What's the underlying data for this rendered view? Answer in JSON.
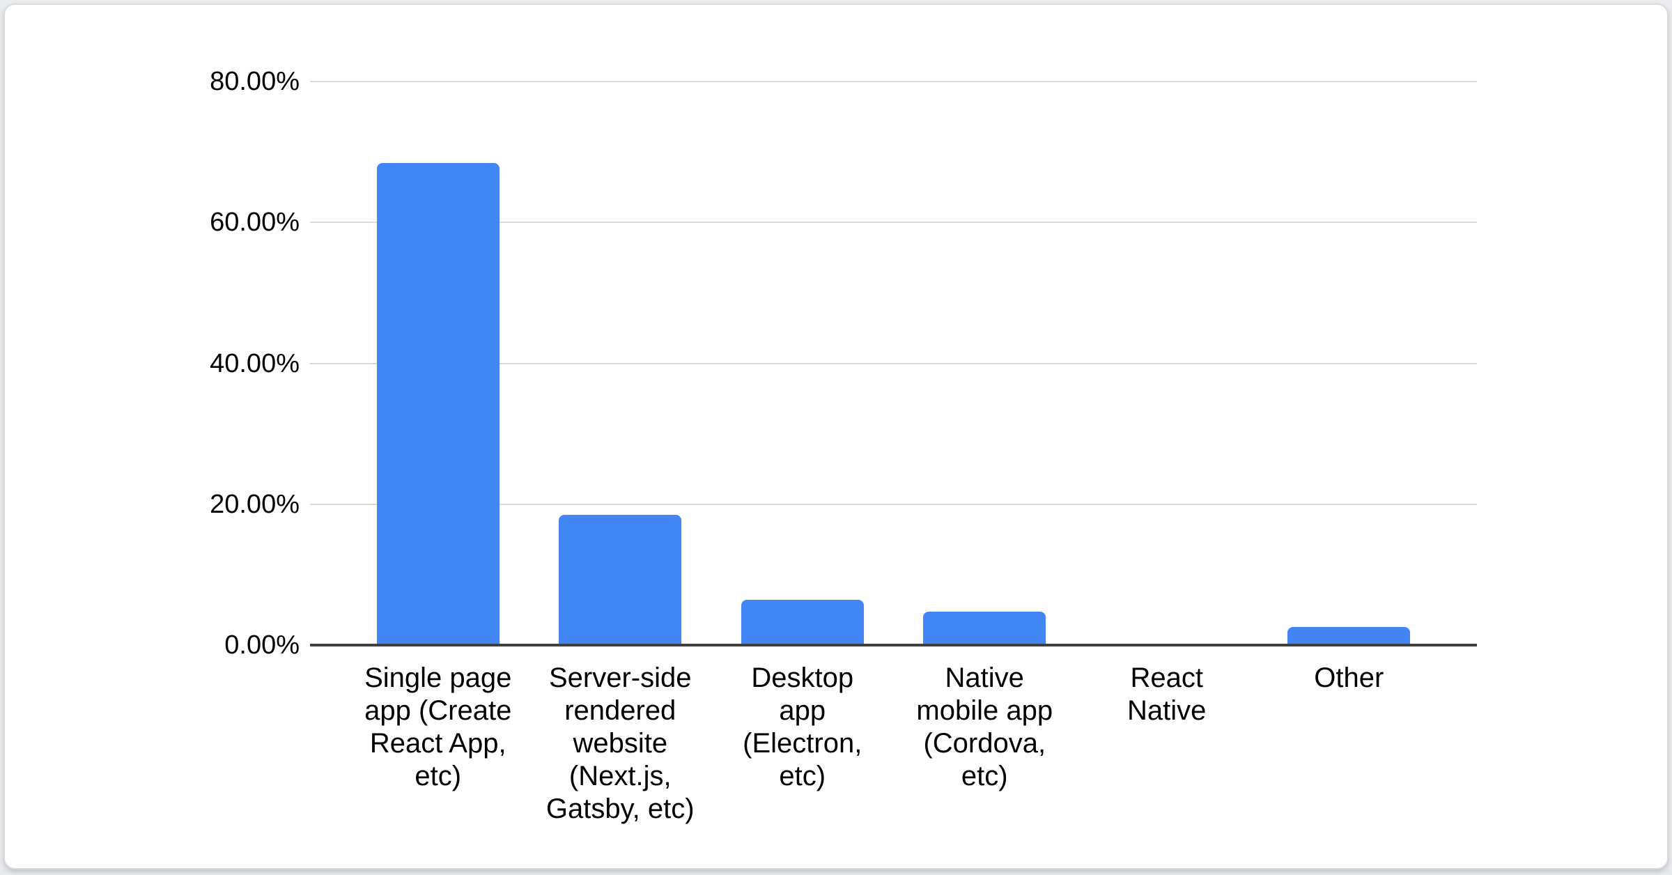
{
  "card": {
    "background": "#ffffff",
    "border_color": "#d8dbde"
  },
  "chart_data": {
    "type": "bar",
    "title": "",
    "categories": [
      "Single page app (Create React App, etc)",
      "Server-side rendered website (Next.js, Gatsby, etc)",
      "Desktop app (Electron, etc)",
      "Native mobile app (Cordova, etc)",
      "React Native",
      "Other"
    ],
    "category_label_lines": [
      [
        "Single page",
        "app (Create",
        "React App,",
        "etc)"
      ],
      [
        "Server-side",
        "rendered",
        "website",
        "(Next.js,",
        "Gatsby, etc)"
      ],
      [
        "Desktop",
        "app",
        "(Electron,",
        "etc)"
      ],
      [
        "Native",
        "mobile app",
        "(Cordova,",
        "etc)"
      ],
      [
        "React",
        "Native"
      ],
      [
        "Other"
      ]
    ],
    "values": [
      68.4,
      18.5,
      6.4,
      4.7,
      0,
      2.6
    ],
    "unit": "%",
    "xlabel": "",
    "ylabel": "",
    "ylim": [
      0,
      80
    ],
    "y_ticks": [
      {
        "value": 80,
        "label": "80.00%"
      },
      {
        "value": 60,
        "label": "60.00%"
      },
      {
        "value": 40,
        "label": "40.00%"
      },
      {
        "value": 20,
        "label": "20.00%"
      },
      {
        "value": 0,
        "label": "0.00%"
      }
    ],
    "grid": true,
    "legend_position": "none",
    "bar_color": "#4285f4",
    "gridline_color": "#d9d9d9",
    "axis_line_color": "#3c4043",
    "text_color": "#000000"
  }
}
